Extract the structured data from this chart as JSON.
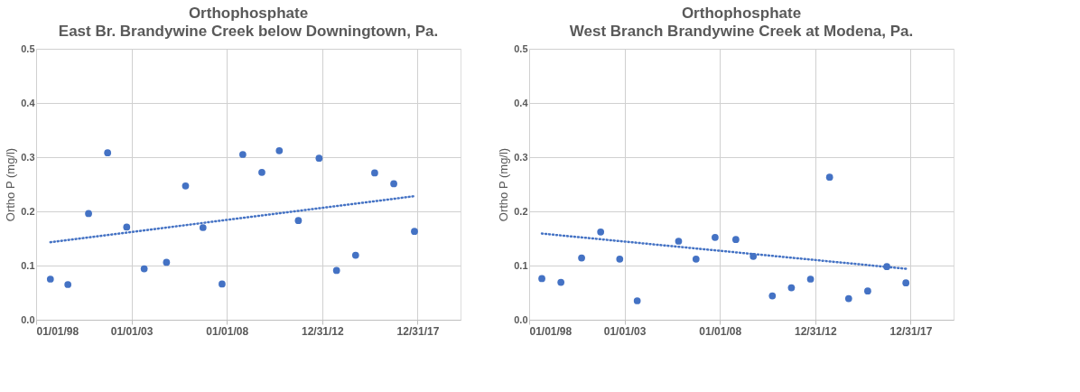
{
  "chart_data": [
    {
      "type": "scatter",
      "title": "Orthophosphate",
      "subtitle": "East Br. Brandywine Creek below Downingtown, Pa.",
      "ylabel": "Ortho P (mg/l)",
      "xlim": [
        "1998-01-01",
        "2020-04-01"
      ],
      "xticks": [
        {
          "value": "1998-01-01",
          "label": "01/01/98"
        },
        {
          "value": "2003-01-01",
          "label": "01/01/03"
        },
        {
          "value": "2008-01-01",
          "label": "01/01/08"
        },
        {
          "value": "2012-12-31",
          "label": "12/31/12"
        },
        {
          "value": "2017-12-31",
          "label": "12/31/17"
        }
      ],
      "ylim": [
        0,
        0.5
      ],
      "yticks": [
        {
          "value": 0,
          "label": "0.0"
        },
        {
          "value": 0.1,
          "label": "0.1"
        },
        {
          "value": 0.2,
          "label": "0.2"
        },
        {
          "value": 0.3,
          "label": "0.3"
        },
        {
          "value": 0.4,
          "label": "0.4"
        },
        {
          "value": 0.5,
          "label": "0.5"
        }
      ],
      "grid": true,
      "marker": "circle",
      "series": [
        {
          "color": "#4472c4",
          "x": [
            "1998-10",
            "1999-09",
            "2000-10",
            "2001-10",
            "2002-10",
            "2003-09",
            "2004-11",
            "2005-11",
            "2006-10",
            "2007-10",
            "2008-11",
            "2009-11",
            "2010-10",
            "2011-10",
            "2012-11",
            "2013-10",
            "2014-10",
            "2015-10",
            "2016-10",
            "2017-11"
          ],
          "values": [
            0.075,
            0.065,
            0.196,
            0.308,
            0.171,
            0.094,
            0.106,
            0.247,
            0.17,
            0.066,
            0.305,
            0.272,
            0.312,
            0.183,
            0.298,
            0.091,
            0.119,
            0.271,
            0.251,
            0.163
          ]
        },
        {
          "type": "line",
          "line_style": "dotted",
          "marker": "none",
          "color": "#4472c4",
          "x": [
            "1998-10",
            "2017-11"
          ],
          "values": [
            0.143,
            0.228
          ]
        }
      ]
    },
    {
      "type": "scatter",
      "title": "Orthophosphate",
      "subtitle": "West Branch Brandywine Creek at Modena, Pa.",
      "ylabel": "Ortho P (mg/l)",
      "xlim": [
        "1998-01-01",
        "2020-04-01"
      ],
      "xticks": [
        {
          "value": "1998-01-01",
          "label": "01/01/98"
        },
        {
          "value": "2003-01-01",
          "label": "01/01/03"
        },
        {
          "value": "2008-01-01",
          "label": "01/01/08"
        },
        {
          "value": "2012-12-31",
          "label": "12/31/12"
        },
        {
          "value": "2017-12-31",
          "label": "12/31/17"
        }
      ],
      "ylim": [
        0,
        0.5
      ],
      "yticks": [
        {
          "value": 0,
          "label": "0.0"
        },
        {
          "value": 0.1,
          "label": "0.1"
        },
        {
          "value": 0.2,
          "label": "0.2"
        },
        {
          "value": 0.3,
          "label": "0.3"
        },
        {
          "value": 0.4,
          "label": "0.4"
        },
        {
          "value": 0.5,
          "label": "0.5"
        }
      ],
      "grid": true,
      "marker": "circle",
      "series": [
        {
          "color": "#4472c4",
          "x": [
            "1998-09",
            "1999-09",
            "2000-10",
            "2001-10",
            "2002-10",
            "2003-09",
            "2005-11",
            "2006-10",
            "2007-10",
            "2008-11",
            "2009-10",
            "2010-10",
            "2011-10",
            "2012-10",
            "2013-10",
            "2014-10",
            "2015-10",
            "2016-10",
            "2017-10"
          ],
          "values": [
            0.076,
            0.069,
            0.114,
            0.162,
            0.112,
            0.035,
            0.145,
            0.112,
            0.152,
            0.148,
            0.117,
            0.044,
            0.059,
            0.075,
            0.263,
            0.039,
            0.053,
            0.098,
            0.068
          ]
        },
        {
          "type": "line",
          "line_style": "dotted",
          "marker": "none",
          "color": "#4472c4",
          "x": [
            "1998-09",
            "2017-10"
          ],
          "values": [
            0.159,
            0.094
          ]
        }
      ]
    }
  ]
}
